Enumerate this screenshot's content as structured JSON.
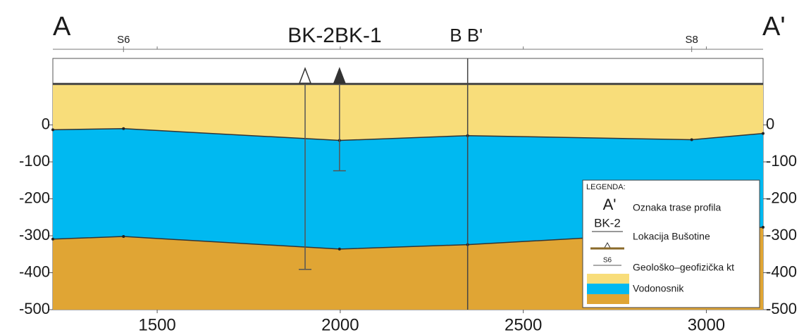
{
  "chart_data": {
    "type": "section",
    "left_mark": "A",
    "right_mark": "A'",
    "wells_label": "BK-2BK-1",
    "section_break": {
      "x": 2348,
      "label": "B B'"
    },
    "stations": [
      {
        "label": "S6",
        "x": 1408
      },
      {
        "label": "S8",
        "x": 2960
      }
    ],
    "x": [
      1215,
      1408,
      1998,
      2348,
      2960,
      3155
    ],
    "surface": 111,
    "aquifer_top": [
      -13,
      -10,
      -42,
      -29,
      -40,
      -23
    ],
    "aquifer_bottom": [
      -309,
      -302,
      -336,
      -324,
      -290,
      -277
    ],
    "colors": {
      "upper": "#f8dd7a",
      "aquifer": "#00b9f1",
      "lower": "#e0a534"
    },
    "wells": [
      {
        "x": 1904,
        "bottom": -391,
        "marker": "open"
      },
      {
        "x": 1998,
        "bottom": -124,
        "marker": "filled"
      }
    ],
    "xlim": [
      1215,
      3155
    ],
    "xticks": [
      1500,
      2000,
      2500,
      3000
    ],
    "ylim": [
      -500,
      180
    ],
    "yticks": [
      0,
      -100,
      -200,
      -300,
      -400,
      -500
    ],
    "legend": {
      "title": "LEGENDA:",
      "entries": [
        {
          "symbol": "A'",
          "text": "Oznaka trase profila"
        },
        {
          "symbol": "BK-2",
          "text": "Lokacija Bušotine"
        },
        {
          "symbol": "S6",
          "text": "Geološko–geofizička kt"
        },
        {
          "text": "Vodonosnik"
        }
      ]
    }
  }
}
